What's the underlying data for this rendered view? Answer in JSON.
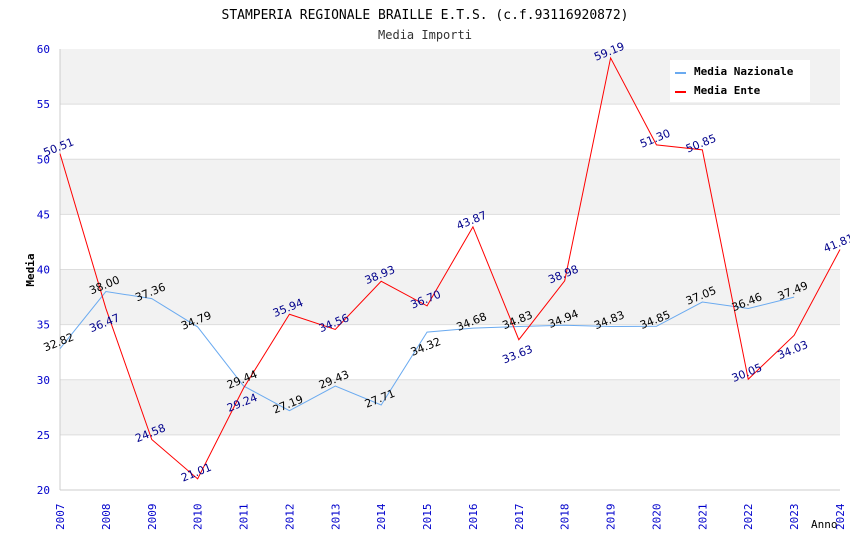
{
  "chart_data": {
    "type": "line",
    "title": "STAMPERIA REGIONALE BRAILLE E.T.S. (c.f.93116920872)",
    "subtitle": "Media Importi",
    "xlabel": "Anno",
    "ylabel": "Media",
    "ylim": [
      20,
      60
    ],
    "yticks": [
      "20",
      "25",
      "30",
      "35",
      "40",
      "45",
      "50",
      "55",
      "60"
    ],
    "x": [
      "2007",
      "2008",
      "2009",
      "2010",
      "2011",
      "2012",
      "2013",
      "2014",
      "2015",
      "2016",
      "2017",
      "2018",
      "2019",
      "2020",
      "2021",
      "2022",
      "2023",
      "2024"
    ],
    "legend_position": "top-right",
    "series": [
      {
        "name": "Media Nazionale",
        "color": "#6aaaf0",
        "label_color": "#000000",
        "values": [
          32.82,
          38.0,
          37.36,
          34.79,
          29.44,
          27.19,
          29.43,
          27.71,
          34.32,
          34.68,
          34.83,
          34.94,
          34.83,
          34.85,
          37.05,
          36.46,
          37.49,
          null
        ],
        "labels": [
          "32.82",
          "38.00",
          "37.36",
          "34.79",
          "29.44",
          "27.19",
          "29.43",
          "27.71",
          "34.32",
          "34.68",
          "34.83",
          "34.94",
          "34.83",
          "34.85",
          "37.05",
          "36.46",
          "37.49",
          null
        ]
      },
      {
        "name": "Media Ente",
        "color": "#ff0000",
        "label_color": "#00008b",
        "values": [
          50.51,
          36.47,
          24.58,
          21.01,
          29.24,
          35.94,
          34.56,
          38.93,
          36.7,
          43.87,
          33.63,
          38.98,
          59.19,
          51.3,
          50.85,
          30.05,
          34.03,
          41.81
        ],
        "labels": [
          "50.51",
          "36.47",
          "24.58",
          "21.01",
          "29.24",
          "35.94",
          "34.56",
          "38.93",
          "36.70",
          "43.87",
          "33.63",
          "38.98",
          "59.19",
          "51.30",
          "50.85",
          "30.05",
          "34.03",
          "41.81"
        ]
      }
    ]
  }
}
